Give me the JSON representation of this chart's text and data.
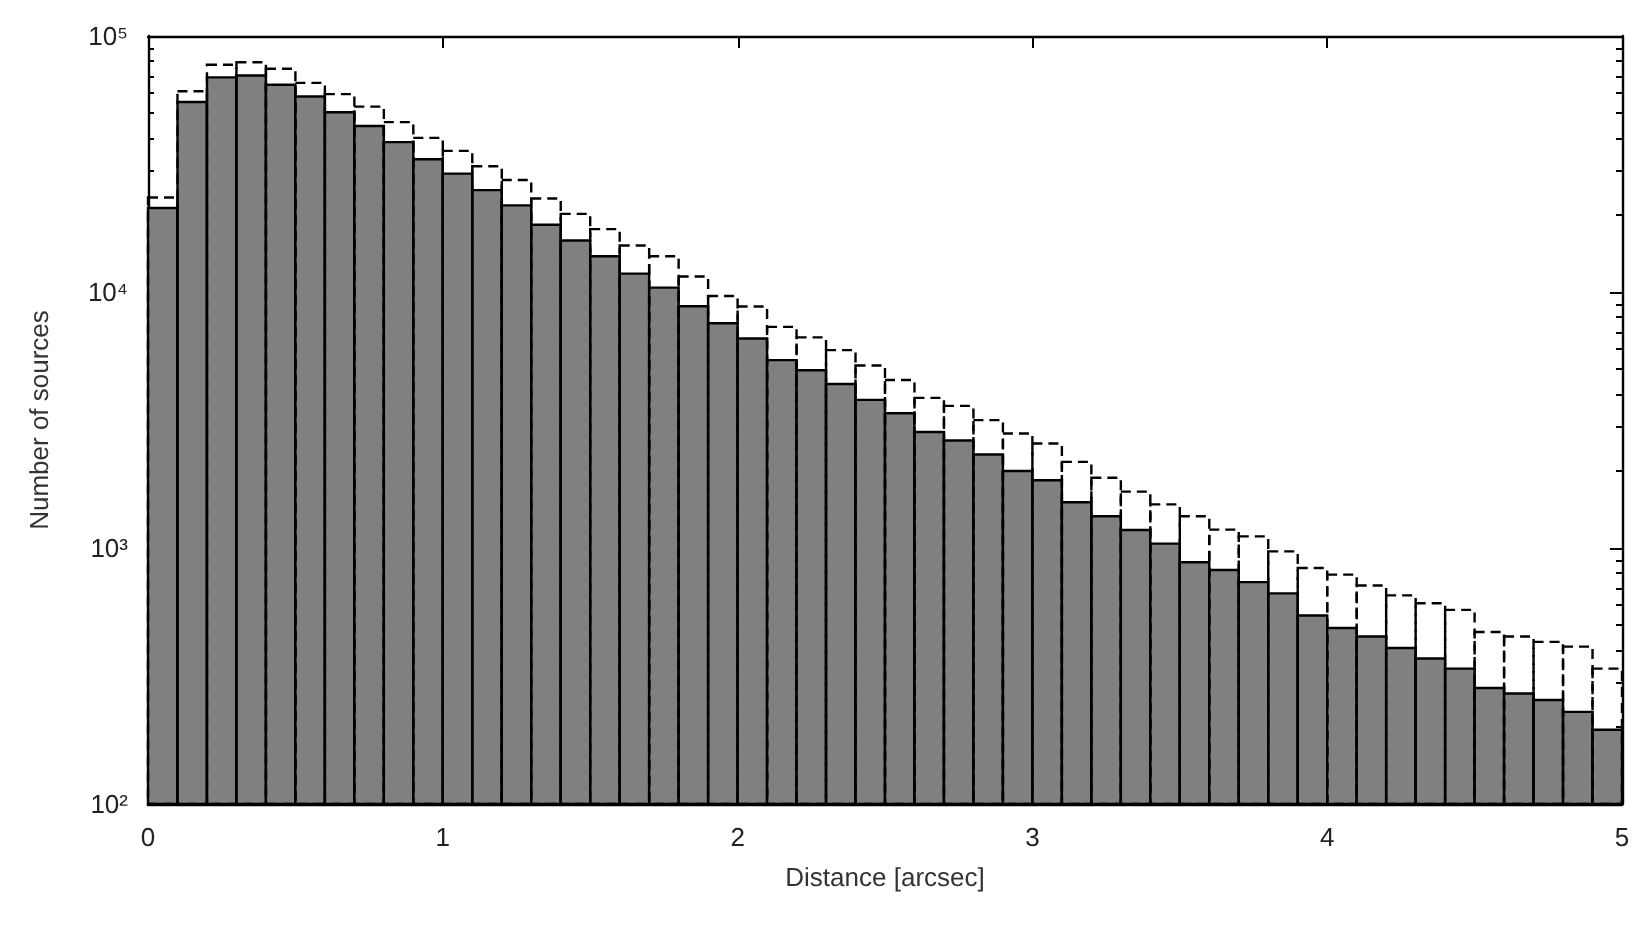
{
  "chart_data": {
    "type": "histogram",
    "xlabel": "Distance [arcsec]",
    "ylabel": "Number of sources",
    "bins": [
      0,
      0.1,
      0.2,
      0.3,
      0.4,
      0.5,
      0.6,
      0.7,
      0.8,
      0.9,
      1,
      1.1,
      1.2,
      1.3,
      1.4,
      1.5,
      1.6,
      1.7,
      1.8,
      1.9,
      2,
      2.1,
      2.2,
      2.3,
      2.4,
      2.5,
      2.6,
      2.7,
      2.8,
      2.9,
      3,
      3.1,
      3.2,
      3.3,
      3.4,
      3.5,
      3.6,
      3.7,
      3.8,
      3.9,
      4,
      4.1,
      4.2,
      4.3,
      4.4,
      4.5,
      4.6,
      4.7,
      4.8,
      4.9,
      5
    ],
    "series": [
      {
        "color": "#808080",
        "line_style": "solid",
        "values": [
          21300,
          55200,
          68900,
          70100,
          64500,
          58000,
          50400,
          44500,
          38500,
          33000,
          29000,
          25000,
          21800,
          18300,
          15900,
          13800,
          11800,
          10400,
          8800,
          7550,
          6580,
          5420,
          4950,
          4370,
          3790,
          3360,
          2840,
          2630,
          2320,
          2000,
          1840,
          1510,
          1330,
          1175,
          1040,
          880,
          820,
          736,
          665,
          545,
          487,
          451,
          407,
          370,
          338,
          284,
          270,
          255,
          229,
          195
        ]
      },
      {
        "color": "#000000",
        "line_style": "dashed",
        "values": [
          23400,
          60800,
          77200,
          79000,
          74500,
          65600,
          59300,
          53000,
          46100,
          40000,
          35600,
          31000,
          27400,
          23200,
          20200,
          17600,
          15200,
          13800,
          11500,
          9650,
          8780,
          7310,
          6650,
          5930,
          5160,
          4530,
          3860,
          3590,
          3160,
          2800,
          2560,
          2170,
          1880,
          1660,
          1480,
          1330,
          1180,
          1110,
          970,
          835,
          787,
          714,
          653,
          608,
          573,
          470,
          451,
          430,
          412,
          338
        ]
      }
    ],
    "xlim": [
      0,
      5
    ],
    "xticks": [
      0,
      1,
      2,
      3,
      4,
      5
    ],
    "log": "y",
    "ylim": [
      100,
      100000
    ],
    "yticks": [
      {
        "value": 100,
        "label": "10²"
      },
      {
        "value": 1000,
        "label": "10³"
      },
      {
        "value": 10000,
        "label": "10⁴"
      },
      {
        "value": 100000,
        "label": "10⁵"
      }
    ],
    "grid": false
  }
}
